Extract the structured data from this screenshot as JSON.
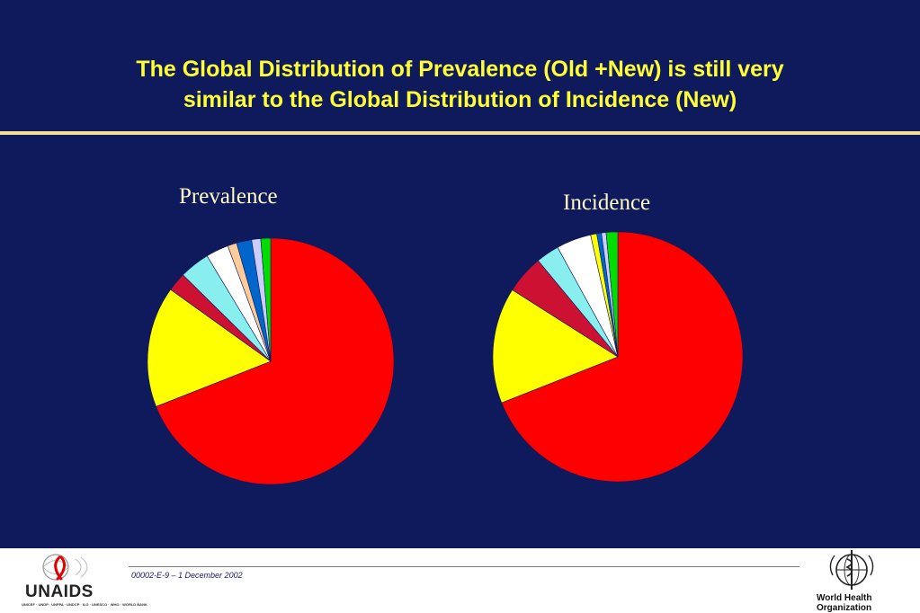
{
  "slide": {
    "title_line1": "The Global Distribution of Prevalence (Old +New) is still very",
    "title_line2": "similar to the Global Distribution of Incidence (New)",
    "background_color": "#0e1a5c",
    "title_color": "#ffff33",
    "rule_color": "#f3df97"
  },
  "footer": {
    "doc_ref": "00002-E-9 – 1 December 2002",
    "unaids_logo": {
      "word": "UNAIDS",
      "sub": "UNICEF · UNDP · UNFPA · UNDCP · ILO · UNESCO · WHO · WORLD BANK"
    },
    "who_logo": {
      "line1": "World Health",
      "line2": "Organization"
    }
  },
  "chart_data": [
    {
      "type": "pie",
      "title": "Prevalence",
      "values": [
        69.5,
        16.0,
        2.5,
        4.0,
        3.0,
        1.2,
        2.0,
        1.2,
        1.3
      ],
      "colors": [
        "#ff0000",
        "#ffff00",
        "#cc1133",
        "#88eeee",
        "#ffffff",
        "#ffcc99",
        "#0066cc",
        "#ccccff",
        "#00dd00"
      ],
      "start_angle_deg": 0,
      "direction": "clockwise"
    },
    {
      "type": "pie",
      "title": "Incidence",
      "values": [
        69.0,
        15.0,
        5.0,
        3.0,
        4.5,
        0.8,
        0.6,
        0.6,
        1.5
      ],
      "colors": [
        "#ff0000",
        "#ffff00",
        "#cc1133",
        "#88eeee",
        "#ffffff",
        "#ffff00",
        "#0066cc",
        "#ccccff",
        "#00dd00"
      ],
      "start_angle_deg": 0,
      "direction": "clockwise"
    }
  ]
}
